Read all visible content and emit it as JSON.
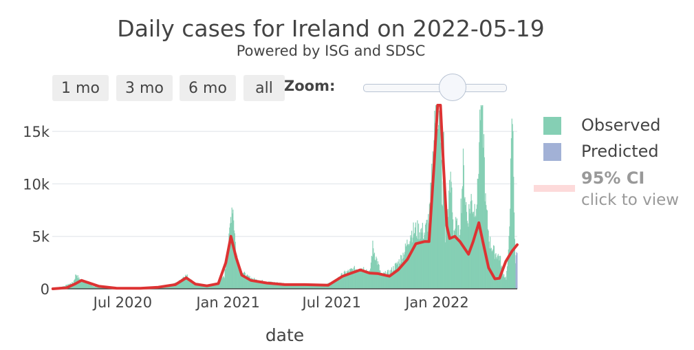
{
  "header": {
    "title": "Daily cases for Ireland on 2022-05-19",
    "subtitle": "Powered by ISG and SDSC"
  },
  "range_selector": {
    "buttons": [
      "1 mo",
      "3 mo",
      "6 mo",
      "all"
    ],
    "zoom_label": "Zoom:"
  },
  "colors": {
    "observed": "#85cfb4",
    "predicted": "#a2b1d6",
    "trend": "#dd3333",
    "ci": "#fddada",
    "grid": "#e8ebef"
  },
  "chart_data": {
    "type": "bar",
    "title": "Daily cases for Ireland on 2022-05-19",
    "subtitle": "Powered by ISG and SDSC",
    "xlabel": "date",
    "ylabel": "",
    "x_range": [
      "2020-02-29",
      "2022-05-21"
    ],
    "ylim": [
      0,
      17500
    ],
    "yticks": [
      0,
      5000,
      10000,
      15000
    ],
    "ytick_labels": [
      "0",
      "5k",
      "10k",
      "15k"
    ],
    "xticks": [
      "2020-07-01",
      "2021-01-01",
      "2021-07-01",
      "2022-01-01"
    ],
    "xtick_labels": [
      "Jul 2020",
      "Jan 2021",
      "Jul 2021",
      "Jan 2022"
    ],
    "legend": [
      "Observed",
      "Predicted",
      "95% CI"
    ],
    "legend_ci_hint": "click to view",
    "series": [
      {
        "name": "Observed",
        "type": "bar",
        "points": [
          [
            "2020-03-01",
            30
          ],
          [
            "2020-03-20",
            250
          ],
          [
            "2020-04-05",
            600
          ],
          [
            "2020-04-10",
            1400
          ],
          [
            "2020-04-15",
            950
          ],
          [
            "2020-04-25",
            700
          ],
          [
            "2020-05-10",
            250
          ],
          [
            "2020-06-01",
            60
          ],
          [
            "2020-07-01",
            20
          ],
          [
            "2020-08-01",
            60
          ],
          [
            "2020-08-20",
            150
          ],
          [
            "2020-09-15",
            300
          ],
          [
            "2020-10-05",
            600
          ],
          [
            "2020-10-15",
            1200
          ],
          [
            "2020-10-20",
            1250
          ],
          [
            "2020-11-01",
            600
          ],
          [
            "2020-11-20",
            300
          ],
          [
            "2020-12-10",
            350
          ],
          [
            "2020-12-25",
            1200
          ],
          [
            "2021-01-02",
            4500
          ],
          [
            "2021-01-06",
            7500
          ],
          [
            "2021-01-08",
            8200
          ],
          [
            "2021-01-10",
            7000
          ],
          [
            "2021-01-14",
            3500
          ],
          [
            "2021-01-20",
            2000
          ],
          [
            "2021-02-01",
            1200
          ],
          [
            "2021-02-20",
            800
          ],
          [
            "2021-03-20",
            600
          ],
          [
            "2021-04-20",
            450
          ],
          [
            "2021-05-20",
            400
          ],
          [
            "2021-06-20",
            400
          ],
          [
            "2021-07-05",
            700
          ],
          [
            "2021-07-20",
            1400
          ],
          [
            "2021-08-05",
            1800
          ],
          [
            "2021-08-20",
            2000
          ],
          [
            "2021-08-28",
            1900
          ],
          [
            "2021-09-05",
            1500
          ],
          [
            "2021-09-10",
            4000
          ],
          [
            "2021-09-25",
            1300
          ],
          [
            "2021-10-10",
            1600
          ],
          [
            "2021-10-25",
            2500
          ],
          [
            "2021-11-05",
            3600
          ],
          [
            "2021-11-15",
            5300
          ],
          [
            "2021-11-25",
            5600
          ],
          [
            "2021-12-05",
            5500
          ],
          [
            "2021-12-10",
            5300
          ],
          [
            "2021-12-18",
            7000
          ],
          [
            "2021-12-24",
            12000
          ],
          [
            "2021-12-27",
            16500
          ],
          [
            "2021-12-29",
            17000
          ],
          [
            "2022-01-02",
            17500
          ],
          [
            "2022-01-05",
            15500
          ],
          [
            "2022-01-08",
            11500
          ],
          [
            "2022-01-10",
            7000
          ],
          [
            "2022-01-12",
            13500
          ],
          [
            "2022-01-15",
            5000
          ],
          [
            "2022-01-19",
            7500
          ],
          [
            "2022-01-25",
            10500
          ],
          [
            "2022-01-29",
            5500
          ],
          [
            "2022-02-03",
            6000
          ],
          [
            "2022-02-08",
            5000
          ],
          [
            "2022-02-15",
            11500
          ],
          [
            "2022-02-22",
            6500
          ],
          [
            "2022-03-01",
            8500
          ],
          [
            "2022-03-06",
            7500
          ],
          [
            "2022-03-12",
            9000
          ],
          [
            "2022-03-17",
            17500
          ],
          [
            "2022-03-21",
            17500
          ],
          [
            "2022-03-26",
            8000
          ],
          [
            "2022-04-02",
            4500
          ],
          [
            "2022-04-10",
            3500
          ],
          [
            "2022-04-20",
            3000
          ],
          [
            "2022-04-25",
            1500
          ],
          [
            "2022-05-01",
            1000
          ],
          [
            "2022-05-05",
            3300
          ],
          [
            "2022-05-12",
            16400
          ],
          [
            "2022-05-17",
            2500
          ]
        ]
      },
      {
        "name": "Predicted",
        "type": "bar",
        "points": [
          [
            "2022-05-18",
            3200
          ],
          [
            "2022-05-19",
            3500
          ],
          [
            "2022-05-20",
            3400
          ]
        ]
      },
      {
        "name": "Trend",
        "type": "line",
        "points": [
          [
            "2020-03-01",
            0
          ],
          [
            "2020-03-25",
            100
          ],
          [
            "2020-04-10",
            500
          ],
          [
            "2020-04-20",
            800
          ],
          [
            "2020-05-01",
            600
          ],
          [
            "2020-05-20",
            250
          ],
          [
            "2020-06-20",
            60
          ],
          [
            "2020-08-01",
            50
          ],
          [
            "2020-09-01",
            150
          ],
          [
            "2020-10-01",
            400
          ],
          [
            "2020-10-20",
            1050
          ],
          [
            "2020-11-05",
            450
          ],
          [
            "2020-11-25",
            280
          ],
          [
            "2020-12-15",
            500
          ],
          [
            "2020-12-28",
            2500
          ],
          [
            "2021-01-06",
            5000
          ],
          [
            "2021-01-15",
            3000
          ],
          [
            "2021-01-25",
            1300
          ],
          [
            "2021-02-10",
            800
          ],
          [
            "2021-03-10",
            550
          ],
          [
            "2021-04-10",
            400
          ],
          [
            "2021-05-15",
            400
          ],
          [
            "2021-06-25",
            350
          ],
          [
            "2021-07-20",
            1200
          ],
          [
            "2021-08-20",
            1800
          ],
          [
            "2021-09-05",
            1500
          ],
          [
            "2021-09-20",
            1450
          ],
          [
            "2021-10-10",
            1200
          ],
          [
            "2021-10-25",
            1800
          ],
          [
            "2021-11-10",
            2800
          ],
          [
            "2021-11-25",
            4300
          ],
          [
            "2021-12-10",
            4500
          ],
          [
            "2021-12-18",
            4500
          ],
          [
            "2021-12-27",
            12000
          ],
          [
            "2022-01-02",
            17500
          ],
          [
            "2022-01-07",
            17500
          ],
          [
            "2022-01-12",
            12000
          ],
          [
            "2022-01-18",
            6000
          ],
          [
            "2022-01-23",
            4800
          ],
          [
            "2022-02-01",
            5000
          ],
          [
            "2022-02-10",
            4500
          ],
          [
            "2022-02-25",
            3300
          ],
          [
            "2022-03-05",
            4500
          ],
          [
            "2022-03-15",
            6300
          ],
          [
            "2022-03-22",
            4500
          ],
          [
            "2022-04-01",
            2000
          ],
          [
            "2022-04-12",
            950
          ],
          [
            "2022-04-20",
            1000
          ],
          [
            "2022-05-01",
            2600
          ],
          [
            "2022-05-12",
            3600
          ],
          [
            "2022-05-21",
            4200
          ]
        ]
      }
    ]
  }
}
